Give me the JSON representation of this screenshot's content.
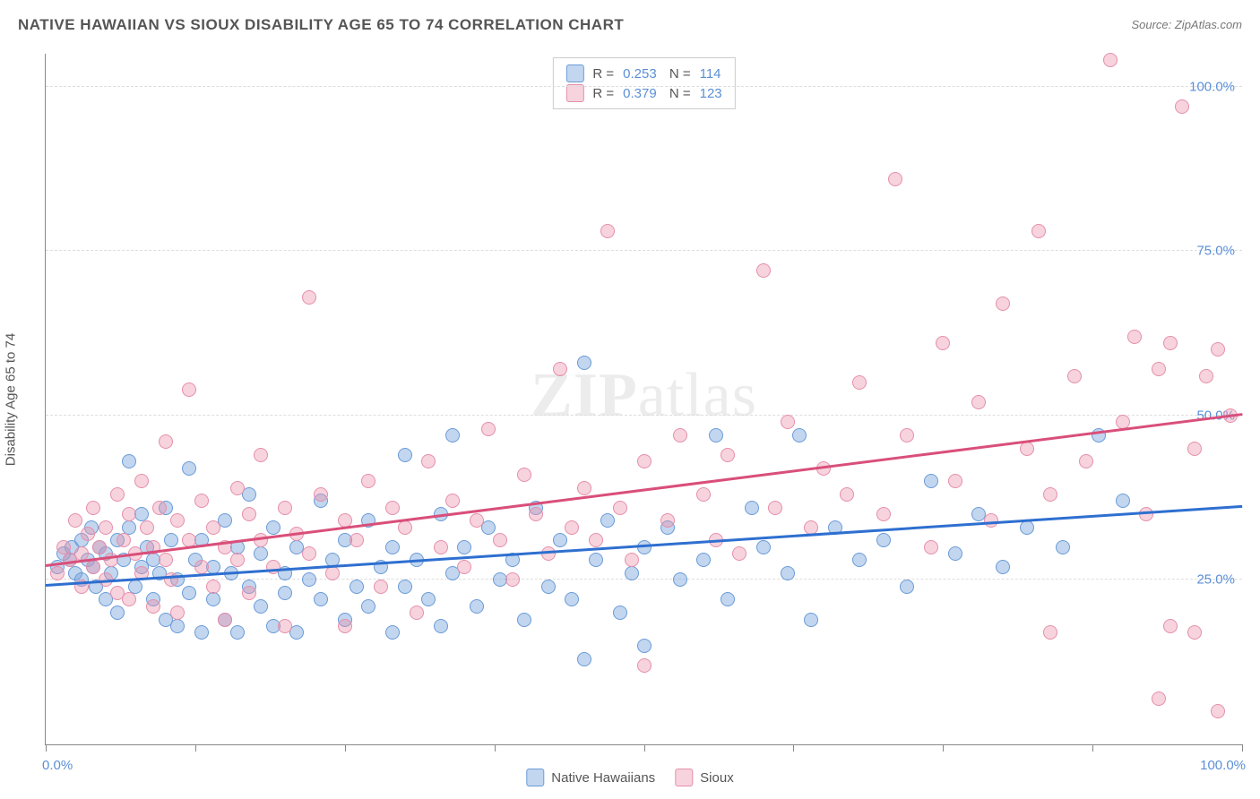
{
  "title": "NATIVE HAWAIIAN VS SIOUX DISABILITY AGE 65 TO 74 CORRELATION CHART",
  "source": "Source: ZipAtlas.com",
  "ylabel": "Disability Age 65 to 74",
  "watermark": {
    "bold": "ZIP",
    "light": "atlas"
  },
  "chart": {
    "type": "scatter",
    "background_color": "#ffffff",
    "grid_color": "#dddddd",
    "axis_color": "#888888",
    "xlim": [
      0,
      100
    ],
    "ylim": [
      0,
      105
    ],
    "xticks": [
      0,
      12.5,
      25,
      37.5,
      50,
      62.5,
      75,
      87.5,
      100
    ],
    "xtick_labels": {
      "0": "0.0%",
      "100": "100.0%"
    },
    "yticks": [
      25,
      50,
      75,
      100
    ],
    "ytick_labels": [
      "25.0%",
      "50.0%",
      "75.0%",
      "100.0%"
    ],
    "point_radius": 8,
    "label_fontsize": 15,
    "label_color": "#5b8fd6",
    "series": [
      {
        "name": "Native Hawaiians",
        "fill": "rgba(120,165,220,0.45)",
        "stroke": "#6a9bd8",
        "trend_color": "#2e6fd0",
        "R": "0.253",
        "N": "114",
        "trend": {
          "y_at_x0": 24,
          "y_at_x100": 36
        },
        "points": [
          [
            1,
            27
          ],
          [
            1.5,
            29
          ],
          [
            2,
            28
          ],
          [
            2.2,
            30
          ],
          [
            2.5,
            26
          ],
          [
            3,
            31
          ],
          [
            3,
            25
          ],
          [
            3.5,
            28
          ],
          [
            3.8,
            33
          ],
          [
            4,
            27
          ],
          [
            4.2,
            24
          ],
          [
            4.5,
            30
          ],
          [
            5,
            29
          ],
          [
            5,
            22
          ],
          [
            5.5,
            26
          ],
          [
            6,
            31
          ],
          [
            6,
            20
          ],
          [
            6.5,
            28
          ],
          [
            7,
            33
          ],
          [
            7,
            43
          ],
          [
            7.5,
            24
          ],
          [
            8,
            27
          ],
          [
            8,
            35
          ],
          [
            8.5,
            30
          ],
          [
            9,
            22
          ],
          [
            9,
            28
          ],
          [
            9.5,
            26
          ],
          [
            10,
            36
          ],
          [
            10,
            19
          ],
          [
            10.5,
            31
          ],
          [
            11,
            25
          ],
          [
            11,
            18
          ],
          [
            12,
            42
          ],
          [
            12,
            23
          ],
          [
            12.5,
            28
          ],
          [
            13,
            17
          ],
          [
            13,
            31
          ],
          [
            14,
            22
          ],
          [
            14,
            27
          ],
          [
            15,
            34
          ],
          [
            15,
            19
          ],
          [
            15.5,
            26
          ],
          [
            16,
            30
          ],
          [
            16,
            17
          ],
          [
            17,
            38
          ],
          [
            17,
            24
          ],
          [
            18,
            21
          ],
          [
            18,
            29
          ],
          [
            19,
            33
          ],
          [
            19,
            18
          ],
          [
            20,
            26
          ],
          [
            20,
            23
          ],
          [
            21,
            30
          ],
          [
            21,
            17
          ],
          [
            22,
            25
          ],
          [
            23,
            37
          ],
          [
            23,
            22
          ],
          [
            24,
            28
          ],
          [
            25,
            19
          ],
          [
            25,
            31
          ],
          [
            26,
            24
          ],
          [
            27,
            34
          ],
          [
            27,
            21
          ],
          [
            28,
            27
          ],
          [
            29,
            17
          ],
          [
            29,
            30
          ],
          [
            30,
            44
          ],
          [
            30,
            24
          ],
          [
            31,
            28
          ],
          [
            32,
            22
          ],
          [
            33,
            35
          ],
          [
            33,
            18
          ],
          [
            34,
            47
          ],
          [
            34,
            26
          ],
          [
            35,
            30
          ],
          [
            36,
            21
          ],
          [
            37,
            33
          ],
          [
            38,
            25
          ],
          [
            39,
            28
          ],
          [
            40,
            19
          ],
          [
            41,
            36
          ],
          [
            42,
            24
          ],
          [
            43,
            31
          ],
          [
            44,
            22
          ],
          [
            45,
            13
          ],
          [
            45,
            58
          ],
          [
            46,
            28
          ],
          [
            47,
            34
          ],
          [
            48,
            20
          ],
          [
            49,
            26
          ],
          [
            50,
            30
          ],
          [
            50,
            15
          ],
          [
            52,
            33
          ],
          [
            53,
            25
          ],
          [
            55,
            28
          ],
          [
            56,
            47
          ],
          [
            57,
            22
          ],
          [
            59,
            36
          ],
          [
            60,
            30
          ],
          [
            62,
            26
          ],
          [
            63,
            47
          ],
          [
            64,
            19
          ],
          [
            66,
            33
          ],
          [
            68,
            28
          ],
          [
            70,
            31
          ],
          [
            72,
            24
          ],
          [
            74,
            40
          ],
          [
            76,
            29
          ],
          [
            78,
            35
          ],
          [
            80,
            27
          ],
          [
            82,
            33
          ],
          [
            85,
            30
          ],
          [
            88,
            47
          ],
          [
            90,
            37
          ]
        ]
      },
      {
        "name": "Sioux",
        "fill": "rgba(235,145,170,0.40)",
        "stroke": "#e58fab",
        "trend_color": "#d94f7a",
        "R": "0.379",
        "N": "123",
        "trend": {
          "y_at_x0": 27,
          "y_at_x100": 50
        },
        "points": [
          [
            1,
            26
          ],
          [
            1.5,
            30
          ],
          [
            2,
            28
          ],
          [
            2.5,
            34
          ],
          [
            3,
            24
          ],
          [
            3,
            29
          ],
          [
            3.5,
            32
          ],
          [
            4,
            27
          ],
          [
            4,
            36
          ],
          [
            4.5,
            30
          ],
          [
            5,
            25
          ],
          [
            5,
            33
          ],
          [
            5.5,
            28
          ],
          [
            6,
            38
          ],
          [
            6,
            23
          ],
          [
            6.5,
            31
          ],
          [
            7,
            35
          ],
          [
            7,
            22
          ],
          [
            7.5,
            29
          ],
          [
            8,
            40
          ],
          [
            8,
            26
          ],
          [
            8.5,
            33
          ],
          [
            9,
            30
          ],
          [
            9,
            21
          ],
          [
            9.5,
            36
          ],
          [
            10,
            28
          ],
          [
            10,
            46
          ],
          [
            10.5,
            25
          ],
          [
            11,
            34
          ],
          [
            11,
            20
          ],
          [
            12,
            31
          ],
          [
            12,
            54
          ],
          [
            13,
            27
          ],
          [
            13,
            37
          ],
          [
            14,
            24
          ],
          [
            14,
            33
          ],
          [
            15,
            30
          ],
          [
            15,
            19
          ],
          [
            16,
            39
          ],
          [
            16,
            28
          ],
          [
            17,
            35
          ],
          [
            17,
            23
          ],
          [
            18,
            31
          ],
          [
            18,
            44
          ],
          [
            19,
            27
          ],
          [
            20,
            36
          ],
          [
            20,
            18
          ],
          [
            21,
            32
          ],
          [
            22,
            29
          ],
          [
            22,
            68
          ],
          [
            23,
            38
          ],
          [
            24,
            26
          ],
          [
            25,
            34
          ],
          [
            25,
            18
          ],
          [
            26,
            31
          ],
          [
            27,
            40
          ],
          [
            28,
            24
          ],
          [
            29,
            36
          ],
          [
            30,
            33
          ],
          [
            31,
            20
          ],
          [
            32,
            43
          ],
          [
            33,
            30
          ],
          [
            34,
            37
          ],
          [
            35,
            27
          ],
          [
            36,
            34
          ],
          [
            37,
            48
          ],
          [
            38,
            31
          ],
          [
            39,
            25
          ],
          [
            40,
            41
          ],
          [
            41,
            35
          ],
          [
            42,
            29
          ],
          [
            43,
            57
          ],
          [
            44,
            33
          ],
          [
            45,
            39
          ],
          [
            46,
            31
          ],
          [
            47,
            78
          ],
          [
            48,
            36
          ],
          [
            49,
            28
          ],
          [
            50,
            43
          ],
          [
            50,
            12
          ],
          [
            52,
            34
          ],
          [
            53,
            47
          ],
          [
            55,
            38
          ],
          [
            56,
            31
          ],
          [
            57,
            44
          ],
          [
            58,
            29
          ],
          [
            60,
            72
          ],
          [
            61,
            36
          ],
          [
            62,
            49
          ],
          [
            64,
            33
          ],
          [
            65,
            42
          ],
          [
            67,
            38
          ],
          [
            68,
            55
          ],
          [
            70,
            35
          ],
          [
            71,
            86
          ],
          [
            72,
            47
          ],
          [
            74,
            30
          ],
          [
            75,
            61
          ],
          [
            76,
            40
          ],
          [
            78,
            52
          ],
          [
            79,
            34
          ],
          [
            80,
            67
          ],
          [
            82,
            45
          ],
          [
            83,
            78
          ],
          [
            84,
            38
          ],
          [
            86,
            56
          ],
          [
            87,
            43
          ],
          [
            89,
            104
          ],
          [
            90,
            49
          ],
          [
            91,
            62
          ],
          [
            92,
            35
          ],
          [
            93,
            57
          ],
          [
            94,
            61
          ],
          [
            95,
            97
          ],
          [
            96,
            45
          ],
          [
            96,
            17
          ],
          [
            97,
            56
          ],
          [
            98,
            5
          ],
          [
            98,
            60
          ],
          [
            99,
            50
          ],
          [
            93,
            7
          ],
          [
            94,
            18
          ],
          [
            84,
            17
          ]
        ]
      }
    ]
  },
  "legend": {
    "series1_label": "Native Hawaiians",
    "series2_label": "Sioux"
  }
}
